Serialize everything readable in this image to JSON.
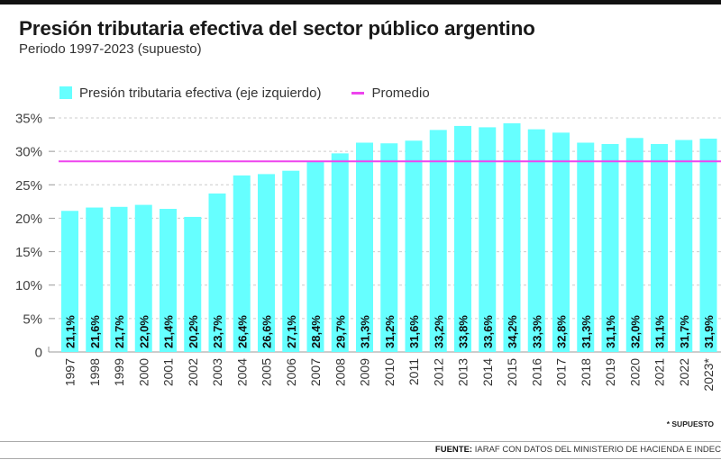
{
  "header": {
    "title": "Presión tributaria efectiva del sector público argentino",
    "subtitle": "Periodo 1997-2023 (supuesto)"
  },
  "legend": {
    "bar_label": "Presión tributaria efectiva (eje izquierdo)",
    "line_label": "Promedio"
  },
  "footer": {
    "footnote": "* SUPUESTO",
    "source_label": "FUENTE:",
    "source_text": " IARAF CON DATOS DEL MINISTERIO DE HACIENDA E INDEC"
  },
  "colors": {
    "bar": "#66ffff",
    "average_line": "#ee44ee",
    "grid": "#cccccc",
    "axis": "#999999"
  },
  "chart_data": {
    "type": "bar",
    "title": "Presión tributaria efectiva del sector público argentino",
    "subtitle": "Periodo 1997-2023 (supuesto)",
    "xlabel": "",
    "ylabel": "",
    "ylim": [
      0,
      35
    ],
    "yticks": [
      0,
      5,
      10,
      15,
      20,
      25,
      30,
      35
    ],
    "ytick_labels": [
      "0",
      "5%",
      "10%",
      "15%",
      "20%",
      "25%",
      "30%",
      "35%"
    ],
    "grid": true,
    "legend_position": "top-left",
    "categories": [
      "1997",
      "1998",
      "1999",
      "2000",
      "2001",
      "2002",
      "2003",
      "2004",
      "2005",
      "2006",
      "2007",
      "2008",
      "2009",
      "2010",
      "2011",
      "2012",
      "2013",
      "2014",
      "2015",
      "2016",
      "2017",
      "2018",
      "2019",
      "2020",
      "2021",
      "2022",
      "2023*"
    ],
    "series": [
      {
        "name": "Presión tributaria efectiva (eje izquierdo)",
        "type": "bar",
        "values": [
          21.1,
          21.6,
          21.7,
          22.0,
          21.4,
          20.2,
          23.7,
          26.4,
          26.6,
          27.1,
          28.4,
          29.7,
          31.3,
          31.2,
          31.6,
          33.2,
          33.8,
          33.6,
          34.2,
          33.3,
          32.8,
          31.3,
          31.1,
          32.0,
          31.1,
          31.7,
          31.9
        ],
        "data_labels": [
          "21,1%",
          "21,6%",
          "21,7%",
          "22,0%",
          "21,4%",
          "20,2%",
          "23,7%",
          "26,4%",
          "26,6%",
          "27,1%",
          "28,4%",
          "29,7%",
          "31,3%",
          "31,2%",
          "31,6%",
          "33,2%",
          "33,8%",
          "33,6%",
          "34,2%",
          "33,3%",
          "32,8%",
          "31,3%",
          "31,1%",
          "32,0%",
          "31,1%",
          "31,7%",
          "31,9%"
        ]
      },
      {
        "name": "Promedio",
        "type": "line",
        "value": 28.5
      }
    ]
  }
}
